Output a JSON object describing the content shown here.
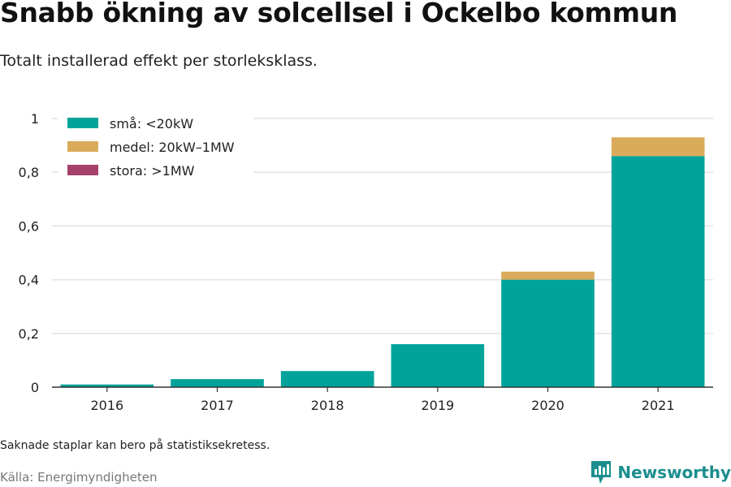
{
  "header": {
    "title": "Snabb ökning av solcellsel i Ockelbo kommun",
    "subtitle": "Totalt installerad effekt per storleksklass."
  },
  "footer": {
    "note": "Saknade staplar kan bero på statistiksekretess.",
    "source": "Källa: Energimyndigheten",
    "brand": "Newsworthy",
    "brand_icon": "newsworthy-logo-icon"
  },
  "colors": {
    "small": "#00a39a",
    "medium": "#d9ab5a",
    "large": "#a5426b",
    "grid": "#e3e3e3",
    "axis": "#333333"
  },
  "chart_data": {
    "type": "bar",
    "stacked": true,
    "categories": [
      "2016",
      "2017",
      "2018",
      "2019",
      "2020",
      "2021"
    ],
    "series": [
      {
        "name": "små: <20kW",
        "values": [
          0.01,
          0.03,
          0.06,
          0.16,
          0.4,
          0.86
        ]
      },
      {
        "name": "medel: 20kW–1MW",
        "values": [
          0,
          0,
          0,
          0,
          0.03,
          0.07
        ]
      },
      {
        "name": "stora: >1MW",
        "values": [
          0,
          0,
          0,
          0,
          0,
          0
        ]
      }
    ],
    "ylim": [
      0,
      1
    ],
    "yticks": [
      0,
      0.2,
      0.4,
      0.6,
      0.8,
      1
    ],
    "ytick_labels": [
      "0",
      "0,2",
      "0,4",
      "0,6",
      "0,8",
      "1"
    ],
    "grid": true,
    "legend_position": "top-left"
  }
}
